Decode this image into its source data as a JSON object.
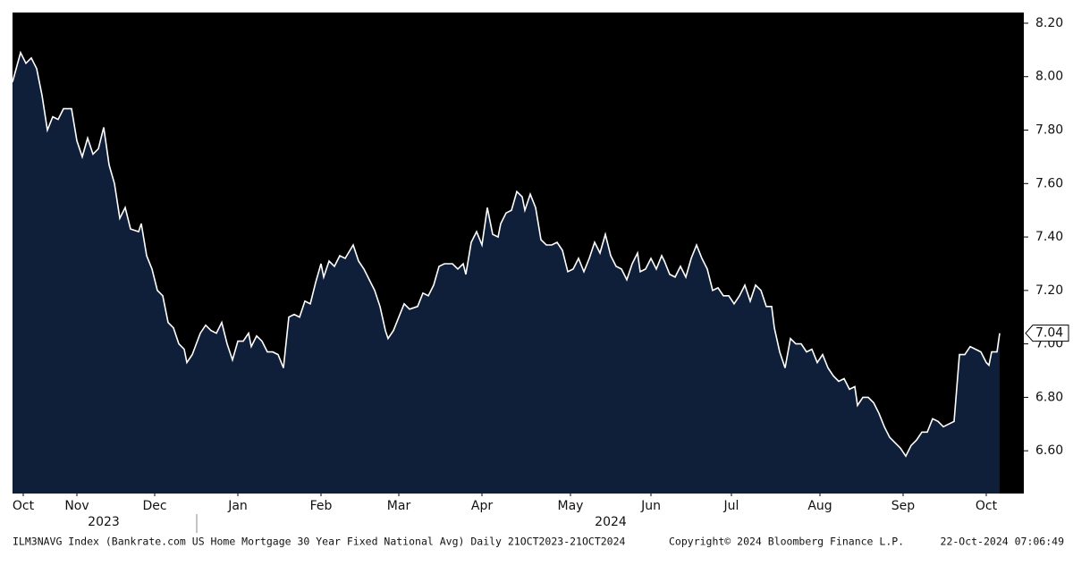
{
  "chart_data": {
    "type": "area",
    "x": [
      0,
      3,
      5,
      7,
      9,
      11,
      13,
      15,
      17,
      19,
      22,
      24,
      26,
      28,
      30,
      32,
      34,
      36,
      38,
      40,
      42,
      44,
      47,
      48,
      50,
      52,
      54,
      56,
      58,
      60,
      62,
      64,
      65,
      67,
      70,
      72,
      74,
      76,
      78,
      80,
      82,
      84,
      86,
      88,
      89,
      91,
      93,
      95,
      97,
      99,
      101,
      103,
      105,
      107,
      109,
      111,
      113,
      115,
      116,
      118,
      120,
      122,
      124,
      127,
      129,
      131,
      133,
      135,
      137,
      139,
      140,
      142,
      144,
      146,
      148,
      151,
      153,
      155,
      157,
      159,
      161,
      164,
      166,
      168,
      169,
      171,
      173,
      175,
      176,
      177,
      179,
      181,
      182,
      184,
      186,
      188,
      190,
      191,
      193,
      195,
      197,
      199,
      201,
      203,
      205,
      207,
      209,
      211,
      213,
      215,
      217,
      219,
      221,
      223,
      225,
      227,
      229,
      231,
      233,
      234,
      236,
      238,
      240,
      242,
      243,
      245,
      247,
      249,
      251,
      253,
      255,
      257,
      259,
      261,
      263,
      265,
      267,
      269,
      271,
      273,
      275,
      277,
      279,
      281,
      283,
      284,
      286,
      288,
      290,
      292,
      294,
      296,
      298,
      300,
      302,
      304,
      306,
      308,
      310,
      312,
      314,
      315,
      317,
      319,
      321,
      323,
      325,
      327,
      329,
      331,
      333,
      335,
      337,
      339,
      341,
      343,
      345,
      347,
      349,
      351,
      353,
      355,
      357,
      359,
      361,
      363,
      364,
      365,
      367,
      368
    ],
    "series": [
      {
        "color": "#0f1f3a",
        "line_color": "#ffffff",
        "values": [
          7.98,
          8.09,
          8.05,
          8.07,
          8.03,
          7.93,
          7.8,
          7.85,
          7.84,
          7.88,
          7.88,
          7.76,
          7.7,
          7.77,
          7.71,
          7.73,
          7.81,
          7.67,
          7.6,
          7.47,
          7.51,
          7.43,
          7.42,
          7.45,
          7.33,
          7.28,
          7.2,
          7.18,
          7.08,
          7.06,
          7.0,
          6.98,
          6.93,
          6.96,
          7.04,
          7.07,
          7.05,
          7.04,
          7.08,
          7.0,
          6.94,
          7.01,
          7.01,
          7.04,
          6.99,
          7.03,
          7.01,
          6.97,
          6.97,
          6.96,
          6.91,
          7.1,
          7.11,
          7.1,
          7.16,
          7.15,
          7.23,
          7.3,
          7.25,
          7.31,
          7.29,
          7.33,
          7.32,
          7.37,
          7.31,
          7.28,
          7.24,
          7.2,
          7.14,
          7.05,
          7.02,
          7.05,
          7.1,
          7.15,
          7.13,
          7.14,
          7.19,
          7.18,
          7.22,
          7.29,
          7.3,
          7.3,
          7.28,
          7.3,
          7.26,
          7.38,
          7.42,
          7.37,
          7.44,
          7.51,
          7.41,
          7.4,
          7.45,
          7.49,
          7.5,
          7.57,
          7.55,
          7.5,
          7.56,
          7.51,
          7.39,
          7.37,
          7.37,
          7.38,
          7.35,
          7.27,
          7.28,
          7.32,
          7.27,
          7.32,
          7.38,
          7.34,
          7.41,
          7.33,
          7.29,
          7.28,
          7.24,
          7.3,
          7.34,
          7.27,
          7.28,
          7.32,
          7.28,
          7.33,
          7.31,
          7.26,
          7.25,
          7.29,
          7.25,
          7.32,
          7.37,
          7.32,
          7.28,
          7.2,
          7.21,
          7.18,
          7.18,
          7.15,
          7.18,
          7.22,
          7.16,
          7.22,
          7.2,
          7.14,
          7.14,
          7.06,
          6.97,
          6.91,
          7.02,
          7.0,
          7.0,
          6.97,
          6.98,
          6.93,
          6.96,
          6.91,
          6.88,
          6.86,
          6.87,
          6.83,
          6.84,
          6.77,
          6.8,
          6.8,
          6.78,
          6.74,
          6.69,
          6.65,
          6.63,
          6.61,
          6.58,
          6.62,
          6.64,
          6.67,
          6.67,
          6.72,
          6.71,
          6.69,
          6.7,
          6.71,
          6.96,
          6.96,
          6.99,
          6.98,
          6.97,
          6.93,
          6.92,
          6.97,
          6.97,
          7.04
        ]
      }
    ],
    "xlim": [
      0,
      377
    ],
    "xticks": [
      {
        "value": 4,
        "label": "Oct"
      },
      {
        "value": 24,
        "label": "Nov"
      },
      {
        "value": 53,
        "label": "Dec"
      },
      {
        "value": 84,
        "label": "Jan"
      },
      {
        "value": 115,
        "label": "Feb"
      },
      {
        "value": 144,
        "label": "Mar"
      },
      {
        "value": 175,
        "label": "Apr"
      },
      {
        "value": 208,
        "label": "May"
      },
      {
        "value": 238,
        "label": "Jun"
      },
      {
        "value": 268,
        "label": "Jul"
      },
      {
        "value": 301,
        "label": "Aug"
      },
      {
        "value": 332,
        "label": "Sep"
      },
      {
        "value": 363,
        "label": "Oct"
      }
    ],
    "year_labels": [
      {
        "value": 34,
        "label": "2023"
      },
      {
        "value": 223,
        "label": "2024"
      }
    ],
    "ylim": [
      6.44,
      8.24
    ],
    "yticks": [
      {
        "value": 6.6,
        "label": "6.60"
      },
      {
        "value": 6.8,
        "label": "6.80"
      },
      {
        "value": 7,
        "label": "7.00"
      },
      {
        "value": 7.2,
        "label": "7.20"
      },
      {
        "value": 7.4,
        "label": "7.40"
      },
      {
        "value": 7.6,
        "label": "7.60"
      },
      {
        "value": 7.8,
        "label": "7.80"
      },
      {
        "value": 8,
        "label": "8.00"
      },
      {
        "value": 8.2,
        "label": "8.20"
      }
    ],
    "footer": {
      "index": "ILM3NAVG Index (Bankrate.com US Home Mortgage 30 Year Fixed National Avg)  Daily 21OCT2023-21OCT2024",
      "copyright": "Copyright© 2024 Bloomberg Finance L.P.",
      "timestamp": "22-Oct-2024 07:06:49"
    }
  }
}
